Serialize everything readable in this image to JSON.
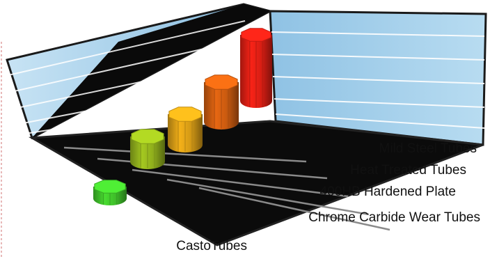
{
  "chart_data": {
    "type": "bar",
    "style": "3d-octagonal-columns",
    "categories": [
      "CastoTubes",
      "Chrome Carbide Wear Tubes",
      "400HB Hardened Plate",
      "Heat Treated Tubes",
      "Mild Steel Tubes"
    ],
    "values": [
      1,
      3,
      4,
      5,
      7
    ],
    "colors": [
      "#3fbf2a",
      "#8fae1c",
      "#d49a16",
      "#c95a10",
      "#d81e14"
    ],
    "title": "",
    "xlabel": "",
    "ylabel": "",
    "axis_values_shown": false,
    "grid": true,
    "wall_color": "#9cc9e6",
    "floor_color": "#0b0b0b"
  }
}
